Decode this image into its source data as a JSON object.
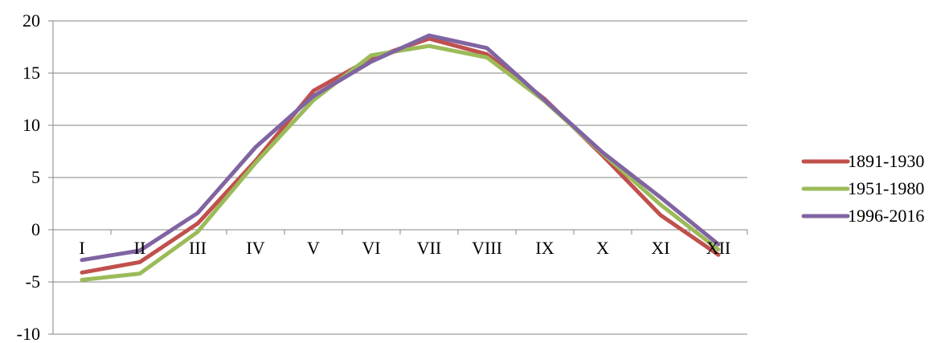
{
  "chart_data": {
    "type": "line",
    "categories": [
      "I",
      "II",
      "III",
      "IV",
      "V",
      "VI",
      "VII",
      "VIII",
      "IX",
      "X",
      "XI",
      "XII"
    ],
    "ylim": [
      -10,
      20
    ],
    "yticks": [
      -10,
      -5,
      0,
      5,
      10,
      15,
      20
    ],
    "grid": true,
    "legend_position": "right",
    "series": [
      {
        "name": "1891-1930",
        "color": "#C0504D",
        "values": [
          -4.1,
          -3.1,
          0.6,
          6.6,
          13.3,
          16.4,
          18.3,
          16.8,
          12.5,
          7.1,
          1.4,
          -2.4
        ]
      },
      {
        "name": "1951-1980",
        "color": "#9BBB59",
        "values": [
          -4.8,
          -4.2,
          -0.2,
          6.4,
          12.4,
          16.7,
          17.6,
          16.5,
          12.3,
          7.3,
          2.4,
          -1.9
        ]
      },
      {
        "name": "1996-2016",
        "color": "#8064A2",
        "values": [
          -2.9,
          -2.0,
          1.6,
          7.9,
          12.8,
          16.1,
          18.6,
          17.4,
          12.4,
          7.4,
          3.1,
          -1.4
        ]
      }
    ]
  }
}
